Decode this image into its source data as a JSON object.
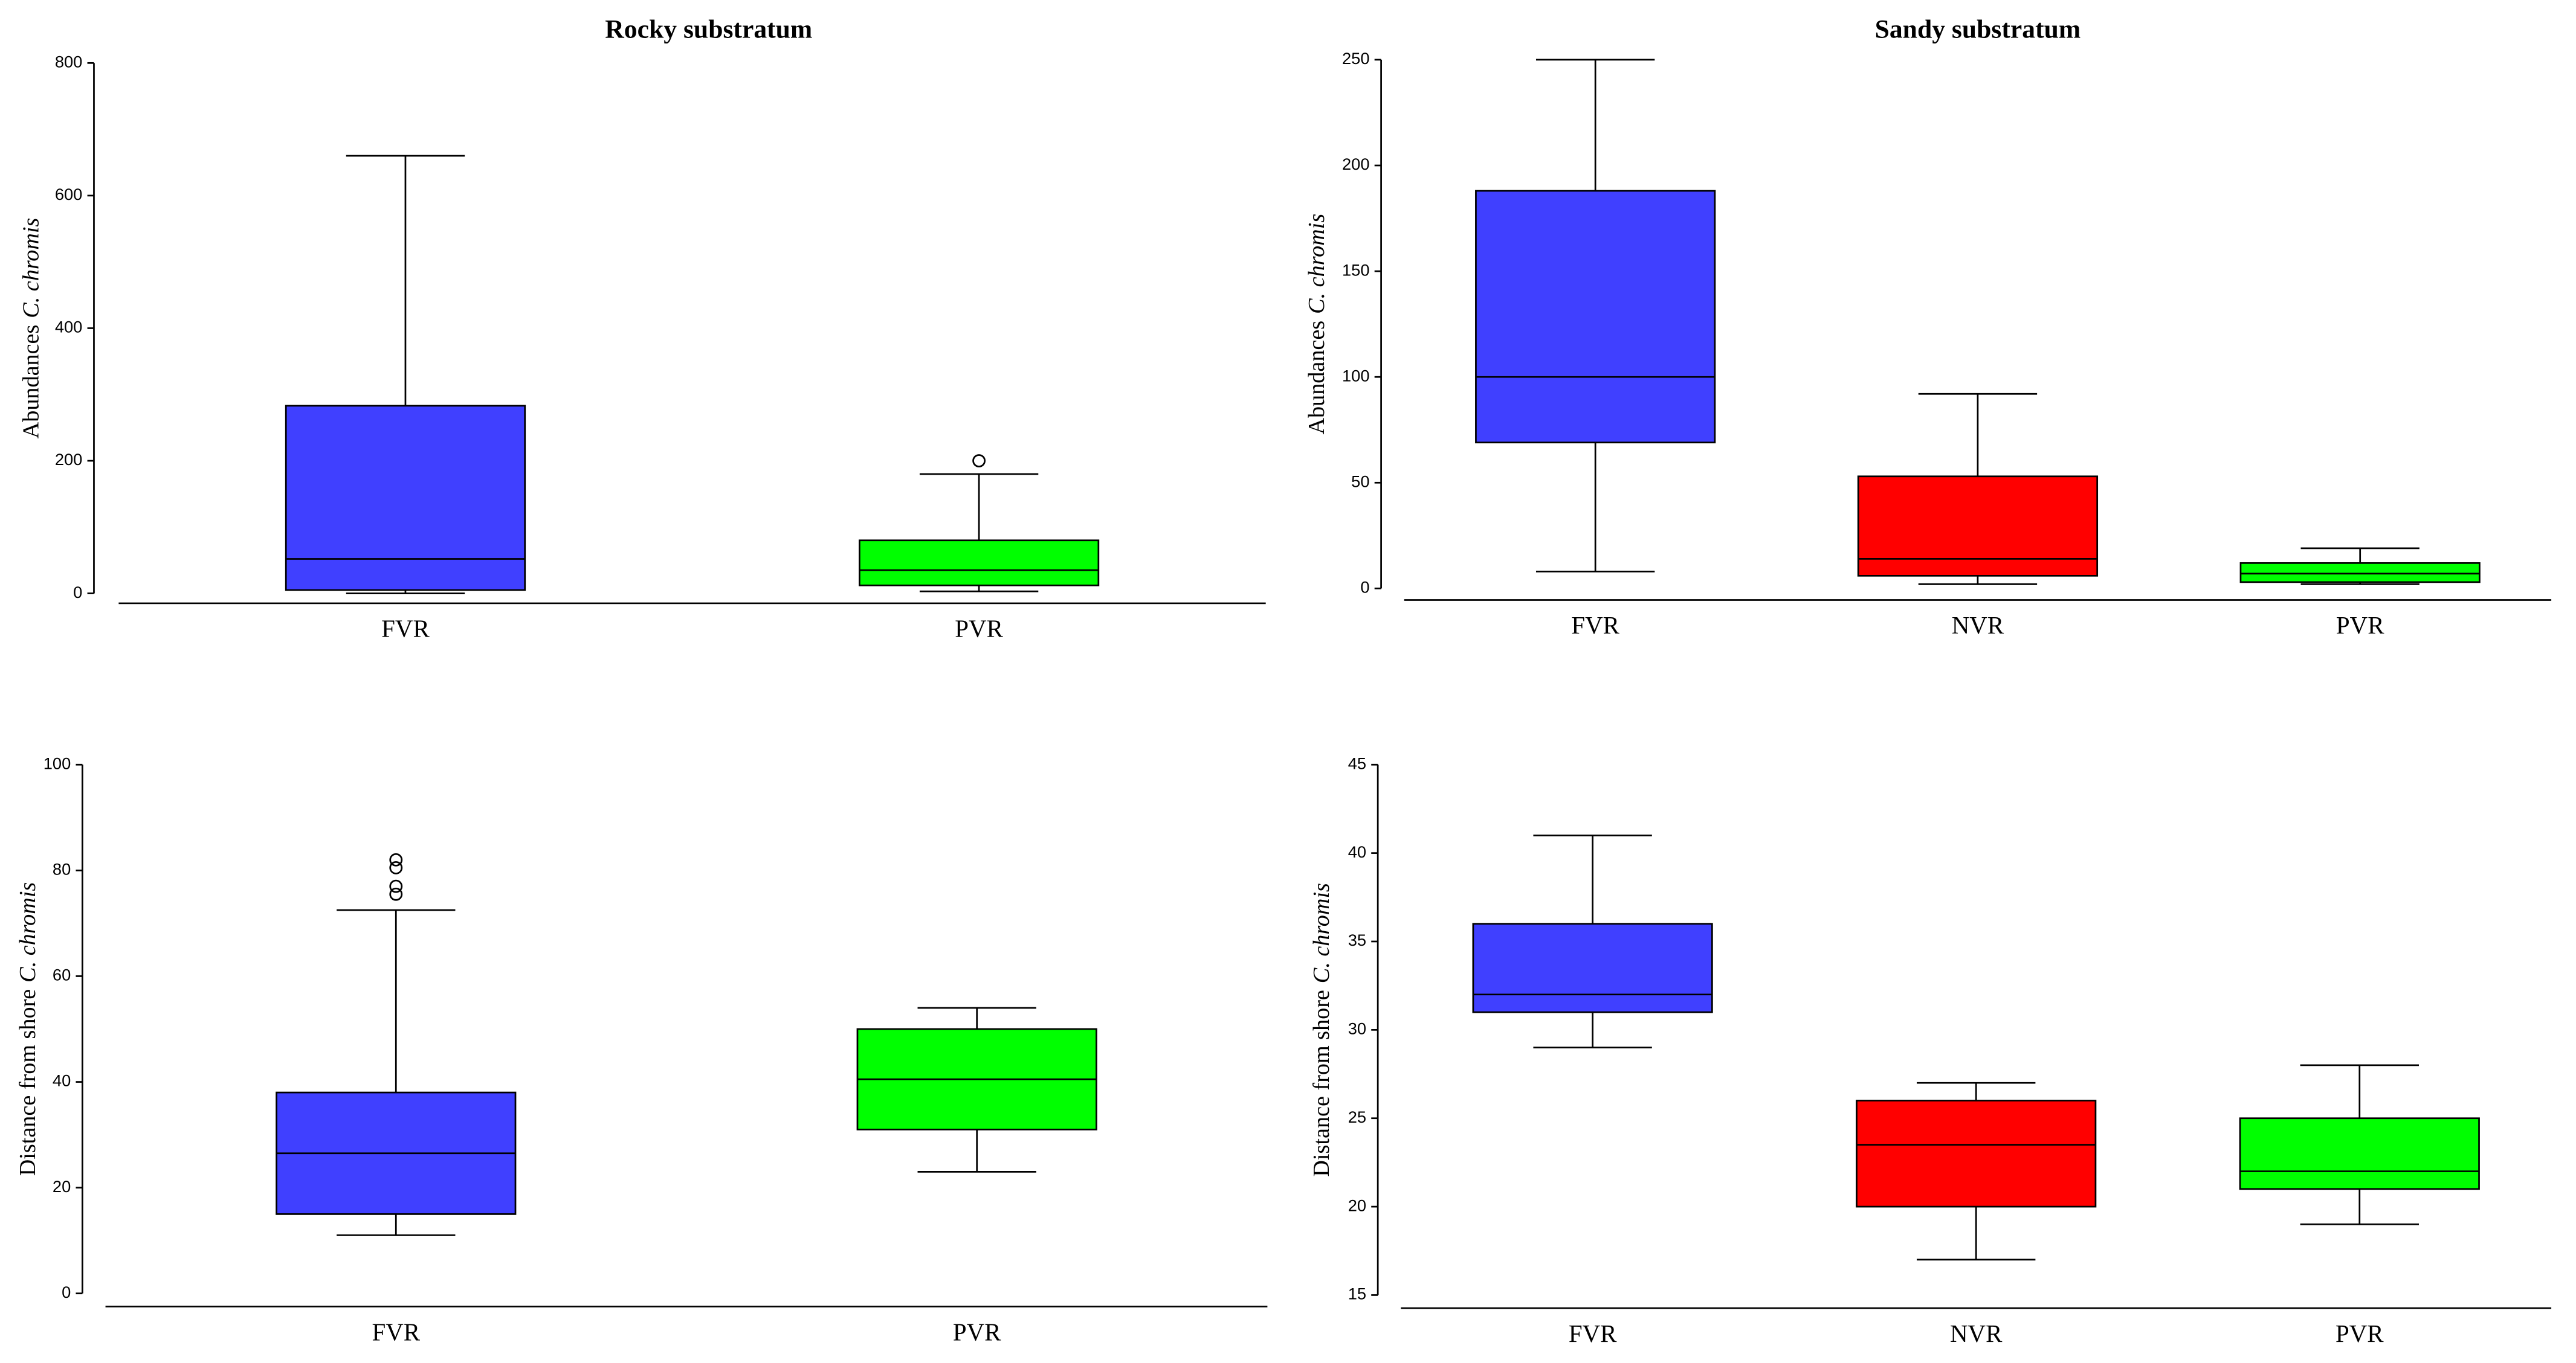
{
  "chart_data": [
    {
      "type": "box",
      "title": "Rocky substratum",
      "ylabel": [
        "Abundances",
        "C. chromis"
      ],
      "categories": [
        "FVR",
        "PVR"
      ],
      "ylim": [
        0,
        800
      ],
      "yticks": [
        0,
        200,
        400,
        600,
        800
      ],
      "boxes": [
        {
          "color": "#4040ff",
          "whisker_low": 0,
          "q1": 5,
          "median": 52,
          "q3": 283,
          "whisker_high": 660,
          "outliers": []
        },
        {
          "color": "#00ff00",
          "whisker_low": 3,
          "q1": 12,
          "median": 35,
          "q3": 80,
          "whisker_high": 180,
          "outliers": [
            200
          ]
        }
      ]
    },
    {
      "type": "box",
      "title": "Sandy substratum",
      "ylabel": [
        "Abundances",
        "C. chromis"
      ],
      "categories": [
        "FVR",
        "NVR",
        "PVR"
      ],
      "ylim": [
        0,
        250
      ],
      "yticks": [
        0,
        50,
        100,
        150,
        200,
        250
      ],
      "boxes": [
        {
          "color": "#4040ff",
          "whisker_low": 8,
          "q1": 69,
          "median": 100,
          "q3": 188,
          "whisker_high": 250,
          "outliers": []
        },
        {
          "color": "#ff0000",
          "whisker_low": 2,
          "q1": 6,
          "median": 14,
          "q3": 53,
          "whisker_high": 92,
          "outliers": []
        },
        {
          "color": "#00ff00",
          "whisker_low": 2,
          "q1": 3,
          "median": 7,
          "q3": 12,
          "whisker_high": 19,
          "outliers": []
        }
      ]
    },
    {
      "type": "box",
      "ylabel": [
        "Distance from shore",
        "C. chromis"
      ],
      "categories": [
        "FVR",
        "PVR"
      ],
      "ylim": [
        0,
        100
      ],
      "yticks": [
        0,
        20,
        40,
        60,
        80,
        100
      ],
      "boxes": [
        {
          "color": "#4040ff",
          "whisker_low": 11,
          "q1": 15,
          "median": 26.5,
          "q3": 38,
          "whisker_high": 72.5,
          "outliers": [
            75.5,
            77,
            80.5,
            82
          ]
        },
        {
          "color": "#00ff00",
          "whisker_low": 23,
          "q1": 31,
          "median": 40.5,
          "q3": 50,
          "whisker_high": 54,
          "outliers": []
        }
      ]
    },
    {
      "type": "box",
      "ylabel": [
        "Distance from shore",
        "C. chromis"
      ],
      "categories": [
        "FVR",
        "NVR",
        "PVR"
      ],
      "ylim": [
        15,
        45
      ],
      "yticks": [
        15,
        20,
        25,
        30,
        35,
        40,
        45
      ],
      "boxes": [
        {
          "color": "#4040ff",
          "whisker_low": 29,
          "q1": 31,
          "median": 32,
          "q3": 36,
          "whisker_high": 41,
          "outliers": []
        },
        {
          "color": "#ff0000",
          "whisker_low": 17,
          "q1": 20,
          "median": 23.5,
          "q3": 26,
          "whisker_high": 27,
          "outliers": []
        },
        {
          "color": "#00ff00",
          "whisker_low": 19,
          "q1": 21,
          "median": 22,
          "q3": 25,
          "whisker_high": 28,
          "outliers": []
        }
      ]
    }
  ]
}
